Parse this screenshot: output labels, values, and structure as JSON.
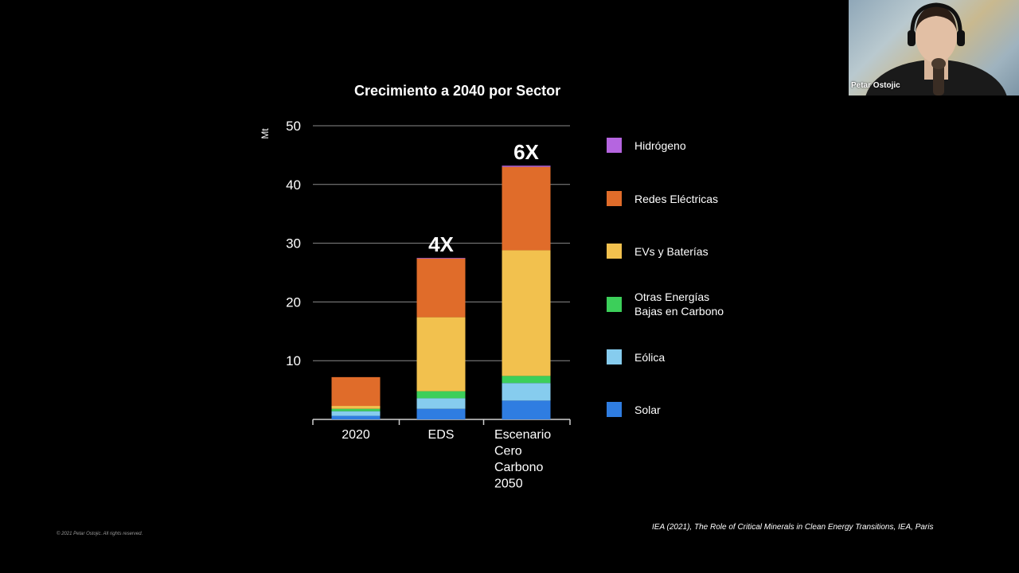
{
  "chart_data": {
    "type": "bar",
    "stacked": true,
    "title": "Crecimiento a 2040 por Sector",
    "ylabel": "Mt",
    "ylim": [
      0,
      50
    ],
    "yticks": [
      10,
      20,
      30,
      40,
      50
    ],
    "categories": [
      "2020",
      "EDS",
      "Escenario Cero Carbono 2050"
    ],
    "category_lines": [
      [
        "2020"
      ],
      [
        "EDS"
      ],
      [
        "Escenario",
        "Cero",
        "Carbono",
        "2050"
      ]
    ],
    "series": [
      {
        "name": "Solar",
        "color": "#2f7de1",
        "values": [
          0.6,
          1.8,
          3.2
        ]
      },
      {
        "name": "Eólica",
        "color": "#86ccee",
        "values": [
          0.8,
          1.8,
          3.0
        ]
      },
      {
        "name": "Otras Energías Bajas en Carbono",
        "color": "#3ccf5a",
        "values": [
          0.4,
          1.2,
          1.2
        ]
      },
      {
        "name": "EVs y Baterías",
        "color": "#f2c14e",
        "values": [
          0.5,
          12.6,
          21.4
        ]
      },
      {
        "name": "Redes Eléctricas",
        "color": "#e06c2a",
        "values": [
          4.9,
          10.0,
          14.2
        ]
      },
      {
        "name": "Hidrógeno",
        "color": "#b565e0",
        "values": [
          0.0,
          0.1,
          0.2
        ]
      }
    ],
    "annotations": [
      {
        "category": "EDS",
        "text": "4X"
      },
      {
        "category": "Escenario Cero Carbono 2050",
        "text": "6X"
      }
    ],
    "legend": {
      "placement": "right",
      "items": [
        {
          "lines": [
            "Hidrógeno"
          ],
          "color": "#b565e0"
        },
        {
          "lines": [
            "Redes Eléctricas"
          ],
          "color": "#e06c2a"
        },
        {
          "lines": [
            "EVs y Baterías"
          ],
          "color": "#f2c14e"
        },
        {
          "lines": [
            "Otras Energías",
            "Bajas en Carbono"
          ],
          "color": "#3ccf5a"
        },
        {
          "lines": [
            "Eólica"
          ],
          "color": "#86ccee"
        },
        {
          "lines": [
            "Solar"
          ],
          "color": "#2f7de1"
        }
      ]
    },
    "grid": true
  },
  "footer": {
    "source": "IEA (2021), The Role of Critical Minerals in Clean Energy Transitions, IEA, Paris",
    "copyright": "© 2021 Petar Ostojic. All rights reserved."
  },
  "webcam": {
    "participant_name": "Petar Ostojic"
  }
}
